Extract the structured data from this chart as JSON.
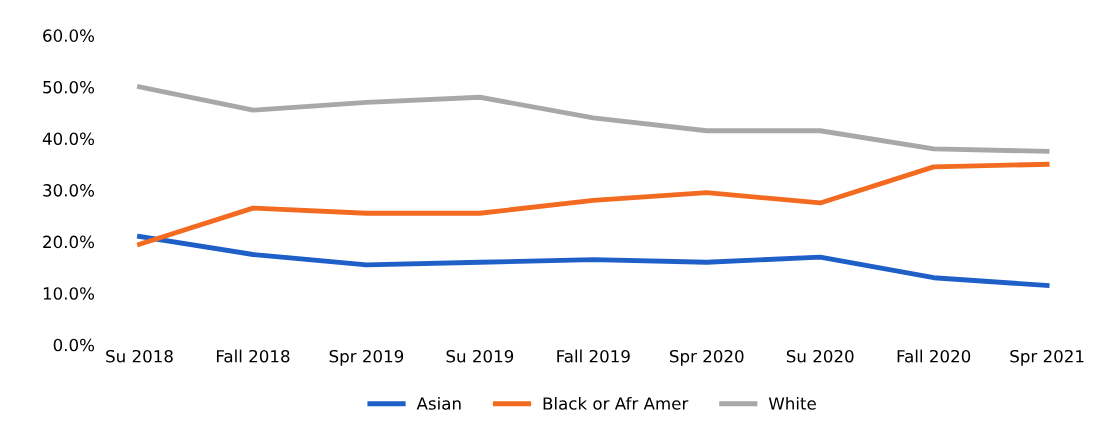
{
  "chart_data": {
    "type": "line",
    "categories": [
      "Su 2018",
      "Fall 2018",
      "Spr 2019",
      "Su 2019",
      "Fall 2019",
      "Spr 2020",
      "Su 2020",
      "Fall 2020",
      "Spr 2021"
    ],
    "series": [
      {
        "name": "Asian",
        "color": "#1f5fc8",
        "values": [
          21.0,
          17.5,
          15.5,
          16.0,
          16.5,
          16.0,
          17.0,
          13.0,
          11.5
        ]
      },
      {
        "name": "Black or Afr Amer",
        "color": "#f26b21",
        "values": [
          19.5,
          26.5,
          25.5,
          25.5,
          28.0,
          29.5,
          27.5,
          34.5,
          35.0
        ]
      },
      {
        "name": "White",
        "color": "#a8a8a8",
        "values": [
          50.0,
          45.5,
          47.0,
          48.0,
          44.0,
          41.5,
          41.5,
          38.0,
          37.5
        ]
      }
    ],
    "ylim": [
      0,
      60
    ],
    "yticks": [
      {
        "value": 0,
        "label": "0.0%"
      },
      {
        "value": 10,
        "label": "10.0%"
      },
      {
        "value": 20,
        "label": "20.0%"
      },
      {
        "value": 30,
        "label": "30.0%"
      },
      {
        "value": 40,
        "label": "40.0%"
      },
      {
        "value": 50,
        "label": "50.0%"
      },
      {
        "value": 60,
        "label": "60.0%"
      }
    ],
    "grid": false,
    "legend": "bottom",
    "marker": "none",
    "line_style": "solid"
  }
}
